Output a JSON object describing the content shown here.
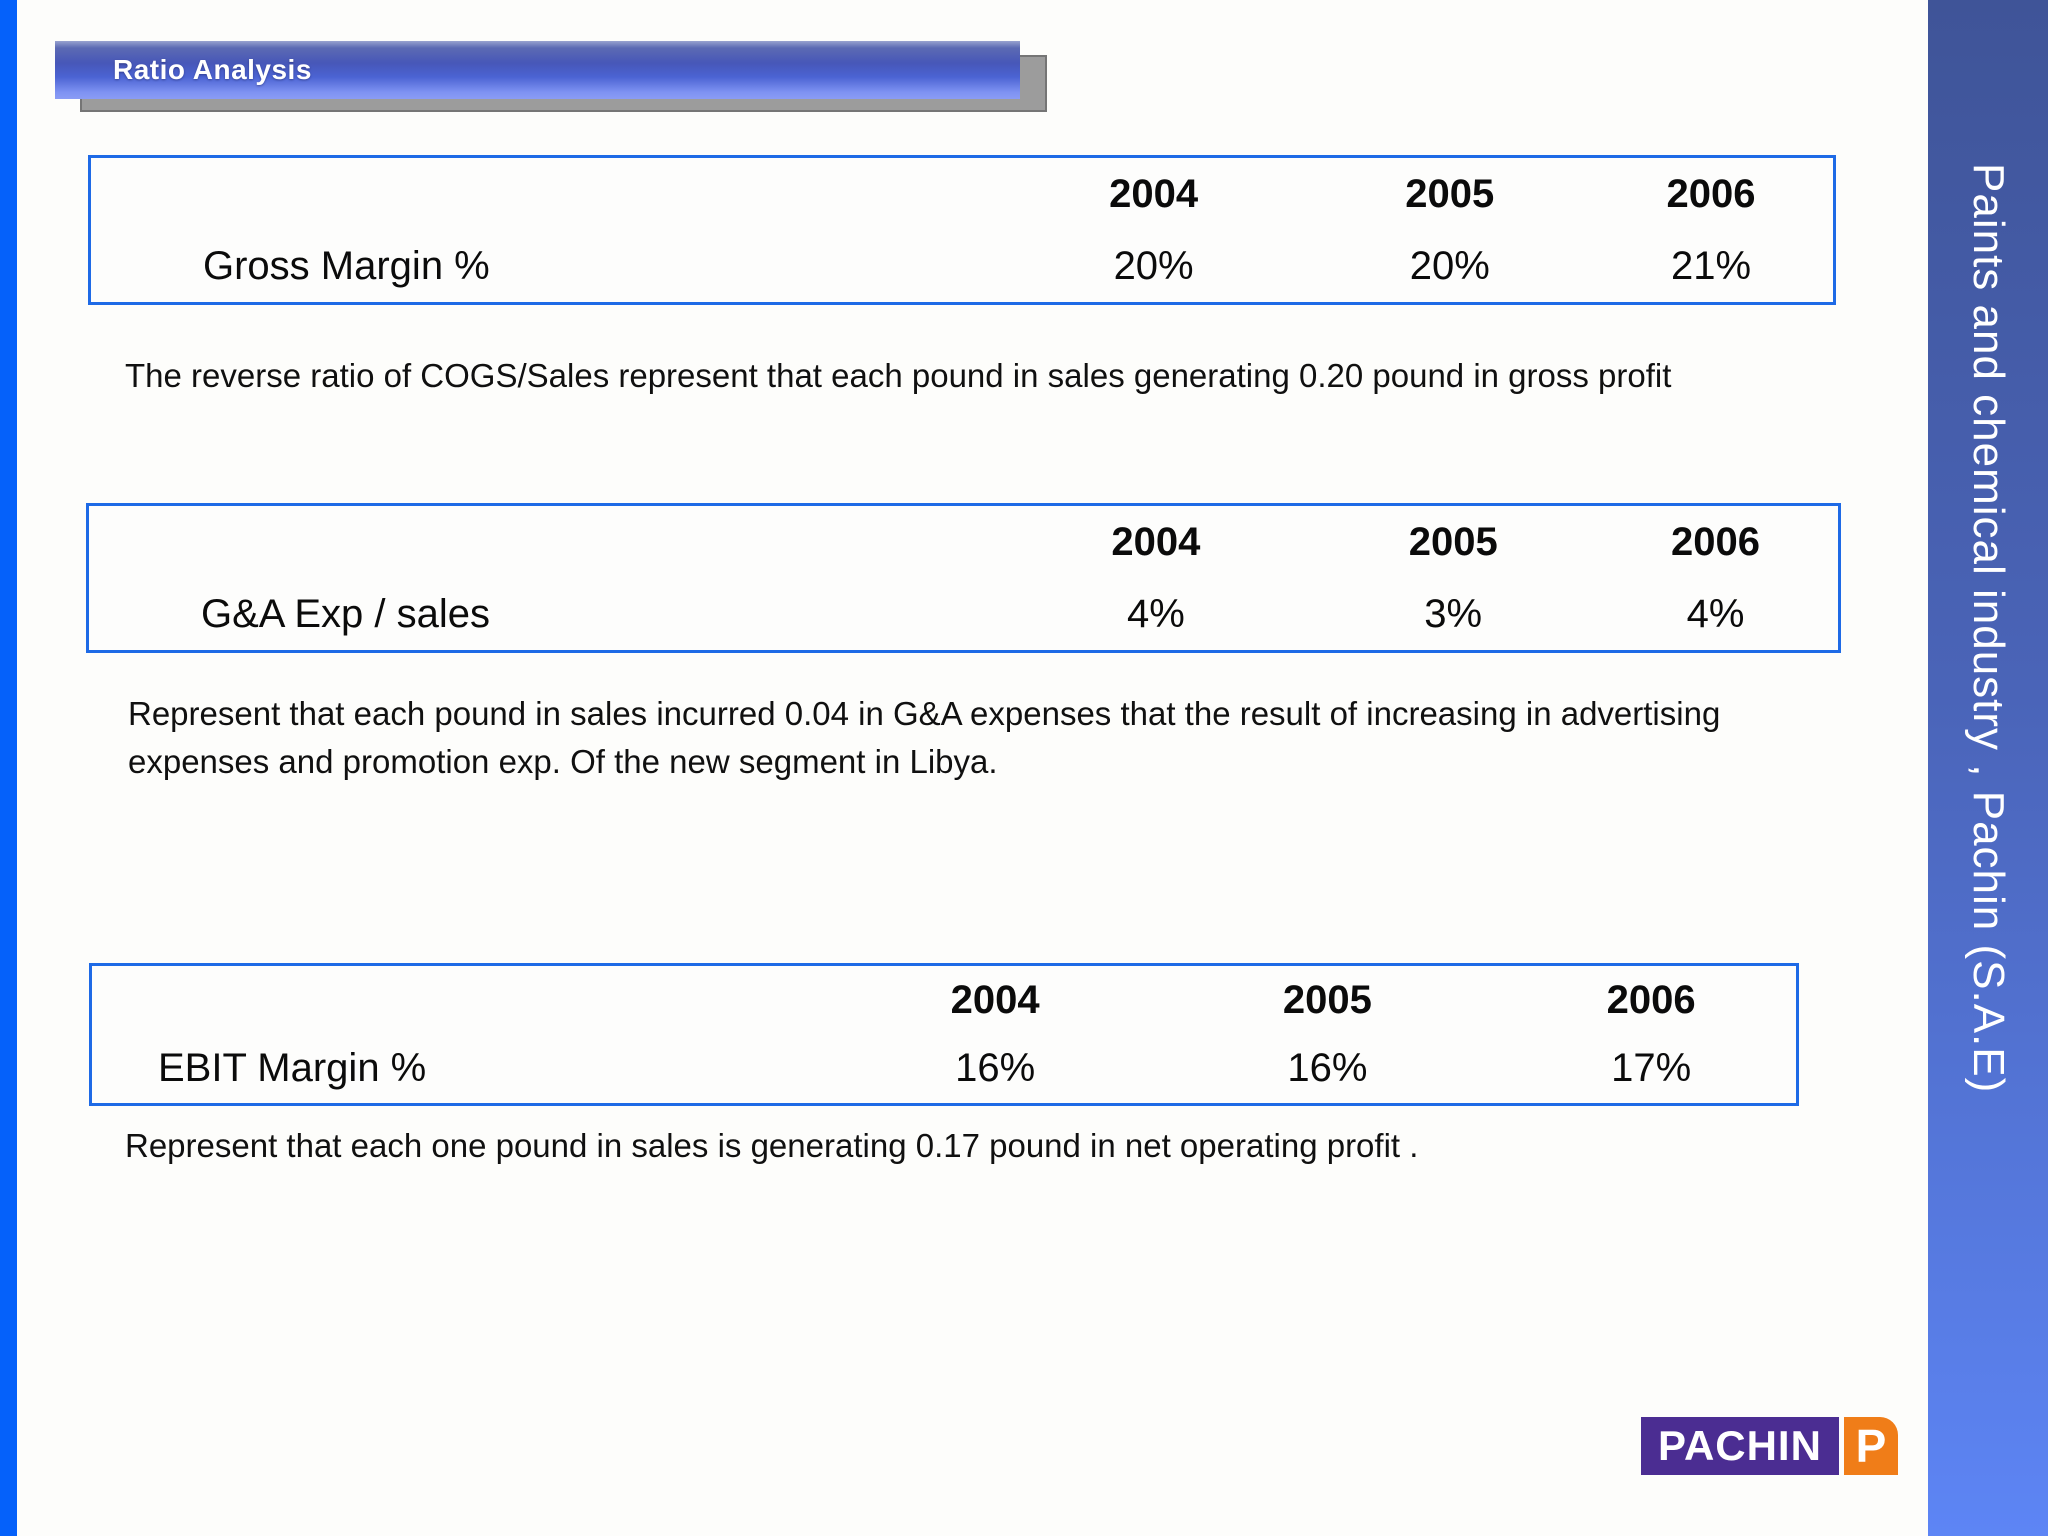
{
  "header": {
    "title": "Ratio Analysis"
  },
  "sections": [
    {
      "table": {
        "years": [
          "2004",
          "2005",
          "2006"
        ],
        "row_label": "Gross Margin %",
        "values": [
          "20%",
          "20%",
          "21%"
        ]
      },
      "note": "The reverse ratio of COGS/Sales represent that each pound in sales generating 0.20 pound in gross profit"
    },
    {
      "table": {
        "years": [
          "2004",
          "2005",
          "2006"
        ],
        "row_label": "G&A Exp / sales",
        "values": [
          "4%",
          "3%",
          "4%"
        ]
      },
      "note": "Represent that each pound in sales incurred 0.04 in G&A expenses that the result of increasing in advertising expenses and promotion exp. Of the new segment in Libya."
    },
    {
      "table": {
        "years": [
          "2004",
          "2005",
          "2006"
        ],
        "row_label": "EBIT Margin %",
        "values": [
          "16%",
          "16%",
          "17%"
        ]
      },
      "note": "Represent that each one pound in sales is generating 0.17 pound in net operating profit ."
    }
  ],
  "sidebar": {
    "text": "Paints and chemical industry , Pachin (S.A.E)"
  },
  "logo": {
    "wordmark": "PACHIN",
    "mark": "P"
  },
  "colors": {
    "left_stripe_blue": "#0561fa",
    "table_border_blue": "#1e6ae6",
    "title_banner_blue_top": "#4757b8",
    "title_banner_blue_bottom": "#8a9cf5",
    "title_shadow_gray": "#9c9c9c",
    "sidebar_gradient_top": "#3f5498",
    "sidebar_gradient_bottom": "#5d85f5",
    "logo_purple": "#4b2d92",
    "logo_orange": "#f07d18",
    "background": "#fdfdfb"
  }
}
